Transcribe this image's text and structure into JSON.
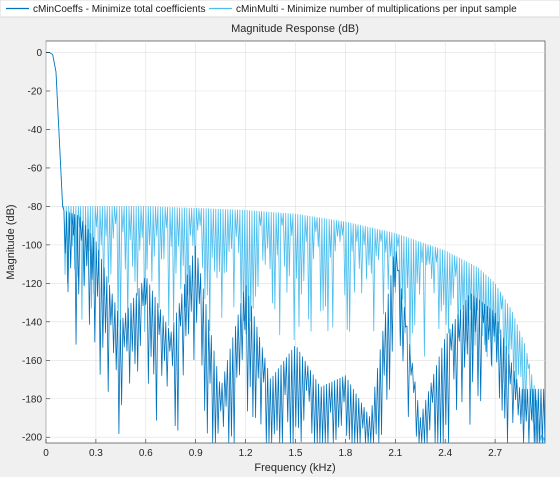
{
  "chart_data": {
    "type": "line",
    "title": "Magnitude Response (dB)",
    "xlabel": "Frequency (kHz)",
    "ylabel": "Magnitude (dB)",
    "xlim": [
      0,
      3.0
    ],
    "ylim": [
      -203,
      6
    ],
    "xticks": [
      0,
      0.3,
      0.6,
      0.9,
      1.2,
      1.5,
      1.8,
      2.1,
      2.4,
      2.7
    ],
    "xtick_labels": [
      "0",
      "0.3",
      "0.6",
      "0.9",
      "1.2",
      "1.5",
      "1.8",
      "2.1",
      "2.4",
      "2.7"
    ],
    "yticks": [
      0,
      -20,
      -40,
      -60,
      -80,
      -100,
      -120,
      -140,
      -160,
      -180,
      -200
    ],
    "ytick_labels": [
      "0",
      "-20",
      "-40",
      "-60",
      "-80",
      "-100",
      "-120",
      "-140",
      "-160",
      "-180",
      "-200"
    ],
    "grid": true,
    "legend_position": "top",
    "series": [
      {
        "name": "cMinCoeffs - Minimize total coefficients",
        "color": "#0072bd",
        "passband_edge_khz": 0.1,
        "envelope_x": [
          0.1,
          0.2,
          0.3,
          0.45,
          0.6,
          0.75,
          0.9,
          1.05,
          1.2,
          1.35,
          1.5,
          1.65,
          1.8,
          1.95,
          2.1,
          2.25,
          2.4,
          2.55,
          2.7,
          2.85,
          2.98
        ],
        "envelope_y": [
          -82,
          -85,
          -98,
          -140,
          -116,
          -146,
          -100,
          -175,
          -120,
          -170,
          -152,
          -174,
          -168,
          -190,
          -100,
          -190,
          -148,
          -125,
          -135,
          -175,
          -175
        ],
        "x": [
          0,
          0.02,
          0.04,
          0.06,
          0.08,
          0.1,
          0.12,
          0.2,
          0.3,
          0.45,
          0.6,
          0.75,
          0.9,
          1.05,
          1.2,
          1.35,
          1.5,
          1.65,
          1.8,
          1.95,
          2.1,
          2.25,
          2.4,
          2.55,
          2.7,
          2.85,
          2.98
        ],
        "y": [
          0,
          0,
          -1,
          -10,
          -45,
          -80,
          -82,
          -85,
          -98,
          -140,
          -116,
          -146,
          -100,
          -175,
          -120,
          -170,
          -152,
          -174,
          -168,
          -190,
          -100,
          -190,
          -148,
          -125,
          -135,
          -175,
          -175
        ]
      },
      {
        "name": "cMinMulti - Minimize number of multiplications per input sample",
        "color": "#4dbeee",
        "passband_edge_khz": 0.1,
        "envelope_x": [
          0.1,
          0.3,
          0.6,
          0.9,
          1.2,
          1.5,
          1.8,
          2.1,
          2.4,
          2.6,
          2.7,
          2.8,
          2.88,
          2.94,
          2.98
        ],
        "envelope_y": [
          -80,
          -80,
          -80,
          -81,
          -82,
          -84,
          -88,
          -94,
          -103,
          -112,
          -120,
          -134,
          -152,
          -175,
          -200
        ],
        "x": [
          0,
          0.02,
          0.04,
          0.06,
          0.08,
          0.1,
          0.3,
          0.6,
          0.9,
          1.2,
          1.5,
          1.8,
          2.1,
          2.4,
          2.6,
          2.7,
          2.8,
          2.88,
          2.94,
          2.98
        ],
        "y": [
          0,
          0,
          -1,
          -10,
          -45,
          -80,
          -80,
          -80,
          -81,
          -82,
          -84,
          -88,
          -94,
          -103,
          -112,
          -120,
          -134,
          -152,
          -175,
          -200
        ]
      }
    ]
  }
}
